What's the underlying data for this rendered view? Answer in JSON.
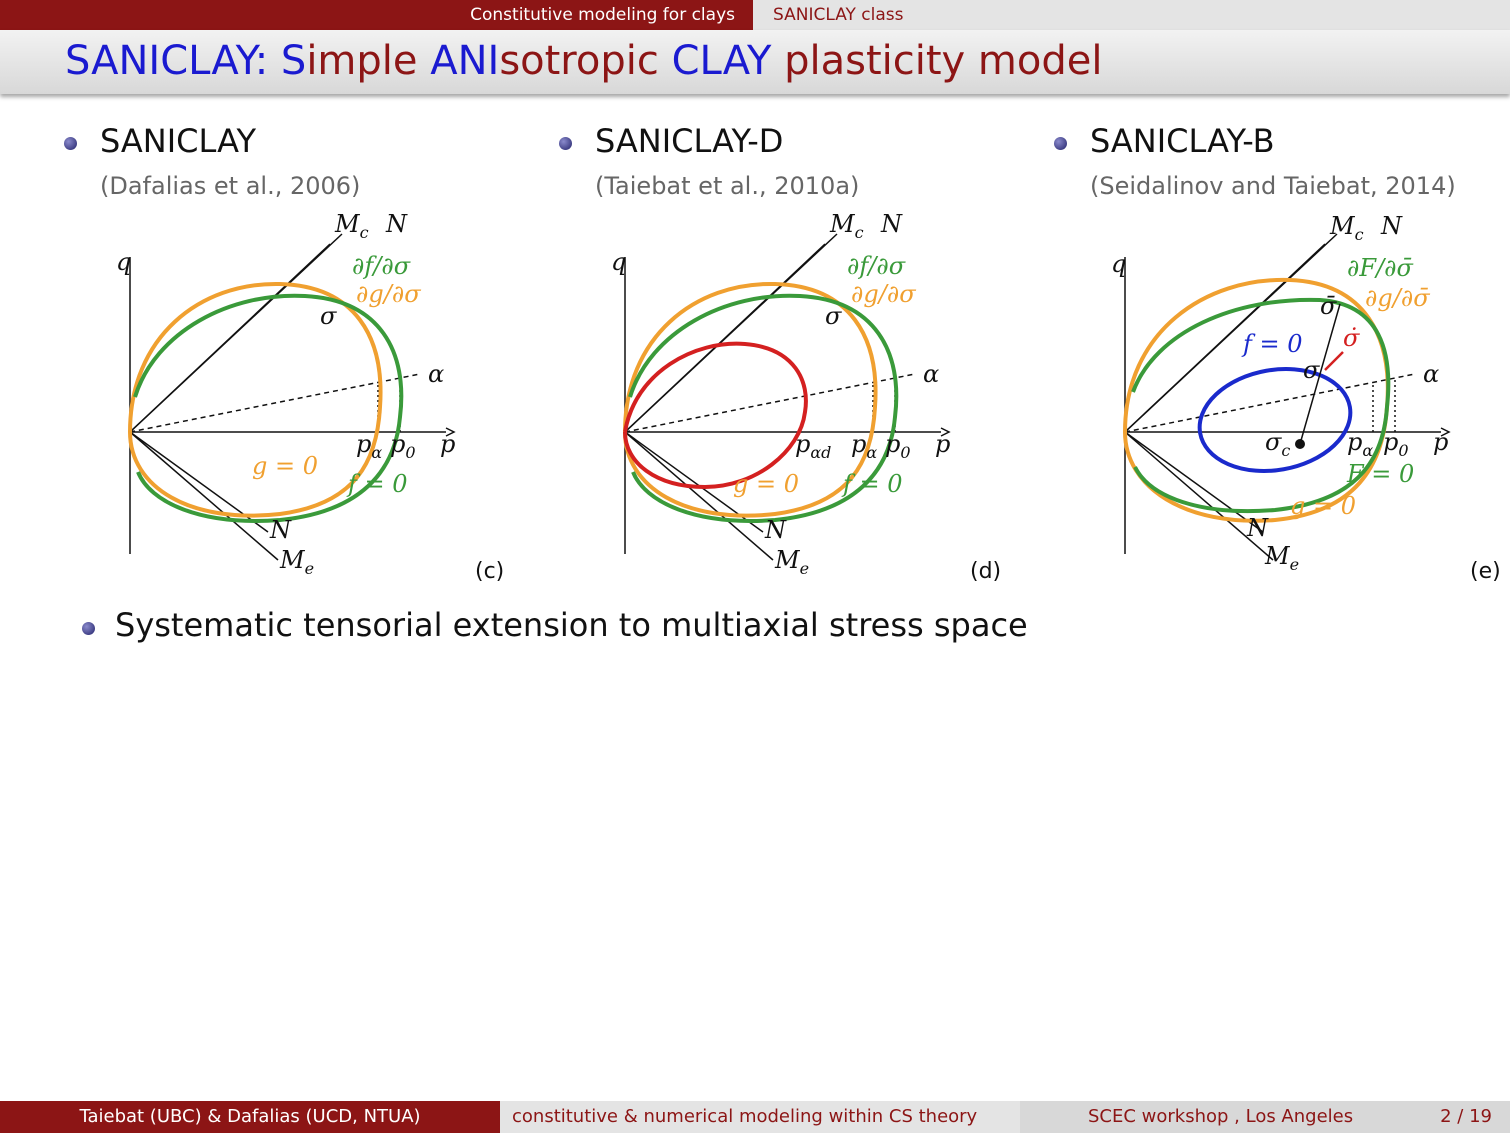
{
  "header": {
    "section": "Constitutive modeling for clays",
    "subsection": "SANICLAY class"
  },
  "title": [
    "SANICLAY: S",
    "imple ",
    "ANI",
    "sotropic ",
    "CLAY",
    " plasticity model"
  ],
  "panels": [
    {
      "heading": "SANICLAY",
      "citation": "(Dafalias et al., 2006)",
      "tag": "(c)",
      "labels": [
        {
          "text": "M",
          "sub": "c"
        },
        {
          "text": "N"
        },
        {
          "text": "q"
        },
        {
          "text": "∂f/∂σ"
        },
        {
          "text": "∂g/∂σ"
        },
        {
          "text": "σ"
        },
        {
          "text": "α"
        },
        {
          "text": "p",
          "sub": "α"
        },
        {
          "text": "p",
          "sub": "0"
        },
        {
          "text": "p"
        },
        {
          "text": "g = 0"
        },
        {
          "text": "f = 0"
        },
        {
          "text": "N"
        },
        {
          "text": "M",
          "sub": "e"
        }
      ]
    },
    {
      "heading": "SANICLAY-D",
      "citation": "(Taiebat et al., 2010a)",
      "tag": "(d)",
      "labels": [
        {
          "text": "M",
          "sub": "c"
        },
        {
          "text": "N"
        },
        {
          "text": "q"
        },
        {
          "text": "∂f/∂σ"
        },
        {
          "text": "∂g/∂σ"
        },
        {
          "text": "σ"
        },
        {
          "text": "α"
        },
        {
          "text": "p",
          "sub": "αd"
        },
        {
          "text": "p",
          "sub": "α"
        },
        {
          "text": "p",
          "sub": "0"
        },
        {
          "text": "p"
        },
        {
          "text": "g = 0"
        },
        {
          "text": "f = 0"
        },
        {
          "text": "N"
        },
        {
          "text": "M",
          "sub": "e"
        }
      ]
    },
    {
      "heading": "SANICLAY-B",
      "citation": "(Seidalinov and Taiebat, 2014)",
      "tag": "(e)",
      "labels": [
        {
          "text": "M",
          "sub": "c"
        },
        {
          "text": "N"
        },
        {
          "text": "q"
        },
        {
          "text": "∂F/∂σ̄"
        },
        {
          "text": "∂g/∂σ̄"
        },
        {
          "text": "σ̄"
        },
        {
          "text": "f = 0"
        },
        {
          "text": "σ̇"
        },
        {
          "text": "σ"
        },
        {
          "text": "α"
        },
        {
          "text": "σ",
          "sub": "c"
        },
        {
          "text": "p",
          "sub": "α"
        },
        {
          "text": "p",
          "sub": "0"
        },
        {
          "text": "p"
        },
        {
          "text": "F = 0"
        },
        {
          "text": "g = 0"
        },
        {
          "text": "N"
        },
        {
          "text": "M",
          "sub": "e"
        }
      ]
    }
  ],
  "bullet": "Systematic tensorial extension to multiaxial stress space",
  "footer": {
    "authors": "Taiebat (UBC) & Dafalias (UCD, NTUA)",
    "topic": "constitutive & numerical modeling within CS theory",
    "event": "SCEC workshop , Los Angeles",
    "page": "2 / 19"
  }
}
